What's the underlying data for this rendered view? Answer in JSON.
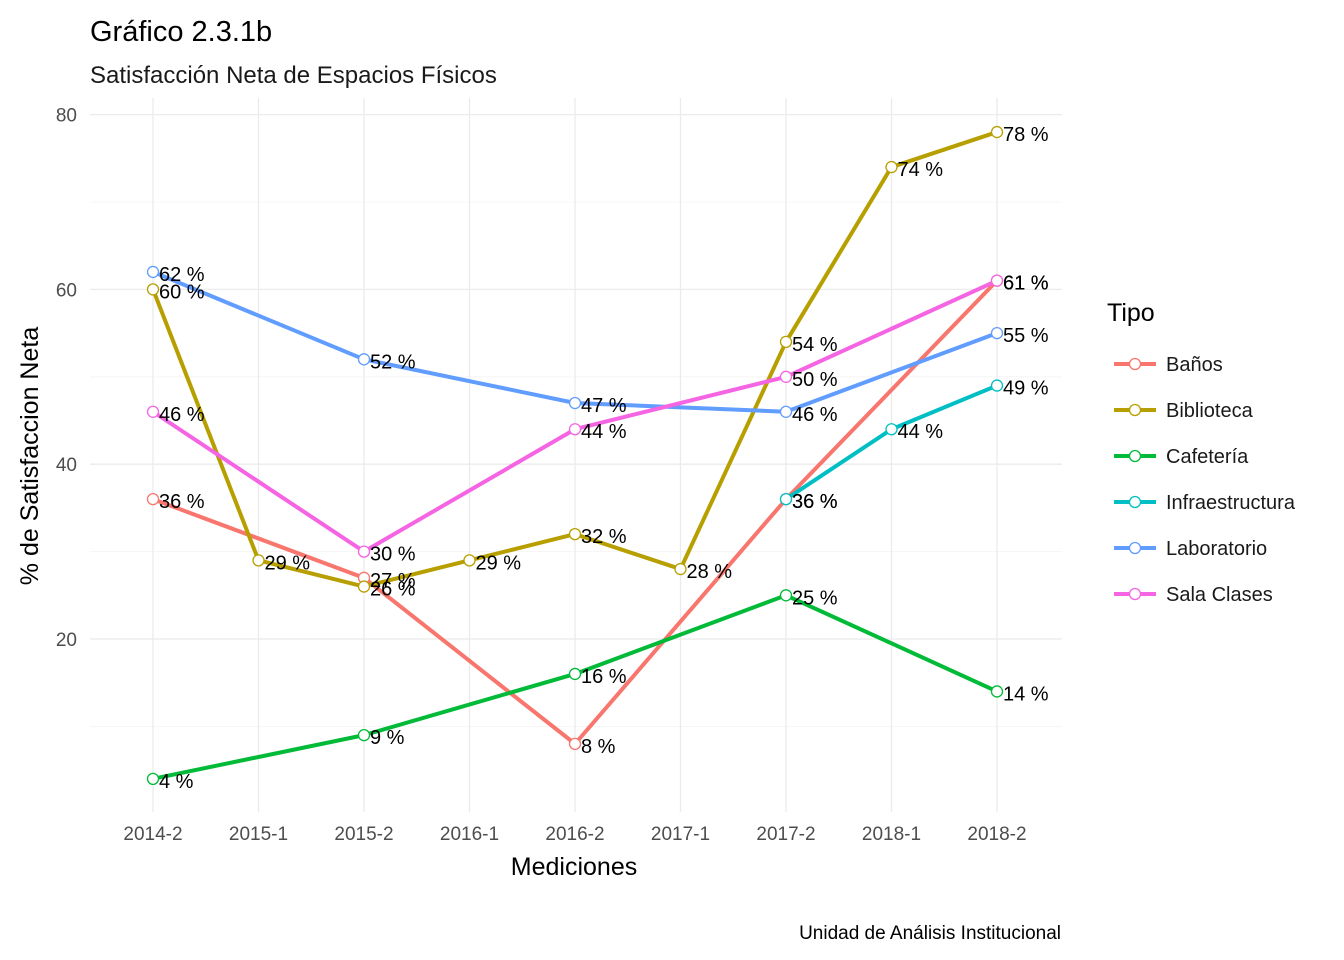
{
  "chart_data": {
    "type": "line",
    "title": "Gráfico 2.3.1b",
    "subtitle": "Satisfacción Neta de Espacios Físicos",
    "xlabel": "Mediciones",
    "ylabel": "% de Satisfaccion Neta",
    "caption": "Unidad de Análisis Institucional",
    "categories": [
      "2014-2",
      "2015-1",
      "2015-2",
      "2016-1",
      "2016-2",
      "2017-1",
      "2017-2",
      "2018-1",
      "2018-2"
    ],
    "ylim": [
      2,
      82
    ],
    "yticks": [
      20,
      40,
      60,
      80
    ],
    "grid": true,
    "legend": {
      "title": "Tipo",
      "placement": "right"
    },
    "label_suffix": " %",
    "series": [
      {
        "name": "Baños",
        "color": "#F8766D",
        "points": [
          {
            "x": "2014-2",
            "y": 36
          },
          {
            "x": "2015-2",
            "y": 27
          },
          {
            "x": "2016-2",
            "y": 8
          },
          {
            "x": "2017-2",
            "y": 36
          },
          {
            "x": "2018-2",
            "y": 61
          }
        ]
      },
      {
        "name": "Biblioteca",
        "color": "#B79F00",
        "points": [
          {
            "x": "2014-2",
            "y": 60
          },
          {
            "x": "2015-1",
            "y": 29
          },
          {
            "x": "2015-2",
            "y": 26
          },
          {
            "x": "2016-1",
            "y": 29
          },
          {
            "x": "2016-2",
            "y": 32
          },
          {
            "x": "2017-1",
            "y": 28
          },
          {
            "x": "2017-2",
            "y": 54
          },
          {
            "x": "2018-1",
            "y": 74
          },
          {
            "x": "2018-2",
            "y": 78
          }
        ]
      },
      {
        "name": "Cafetería",
        "color": "#00BA38",
        "points": [
          {
            "x": "2014-2",
            "y": 4
          },
          {
            "x": "2015-2",
            "y": 9
          },
          {
            "x": "2016-2",
            "y": 16
          },
          {
            "x": "2017-2",
            "y": 25
          },
          {
            "x": "2018-2",
            "y": 14
          }
        ]
      },
      {
        "name": "Infraestructura",
        "color": "#00BFC4",
        "points": [
          {
            "x": "2017-2",
            "y": 36
          },
          {
            "x": "2018-1",
            "y": 44
          },
          {
            "x": "2018-2",
            "y": 49
          }
        ]
      },
      {
        "name": "Laboratorio",
        "color": "#619CFF",
        "points": [
          {
            "x": "2014-2",
            "y": 62
          },
          {
            "x": "2015-2",
            "y": 52
          },
          {
            "x": "2016-2",
            "y": 47
          },
          {
            "x": "2017-2",
            "y": 46
          },
          {
            "x": "2018-2",
            "y": 55
          }
        ]
      },
      {
        "name": "Sala Clases",
        "color": "#F564E3",
        "points": [
          {
            "x": "2014-2",
            "y": 46
          },
          {
            "x": "2015-2",
            "y": 30
          },
          {
            "x": "2016-2",
            "y": 44
          },
          {
            "x": "2017-2",
            "y": 50
          },
          {
            "x": "2018-2",
            "y": 61
          }
        ]
      }
    ]
  }
}
